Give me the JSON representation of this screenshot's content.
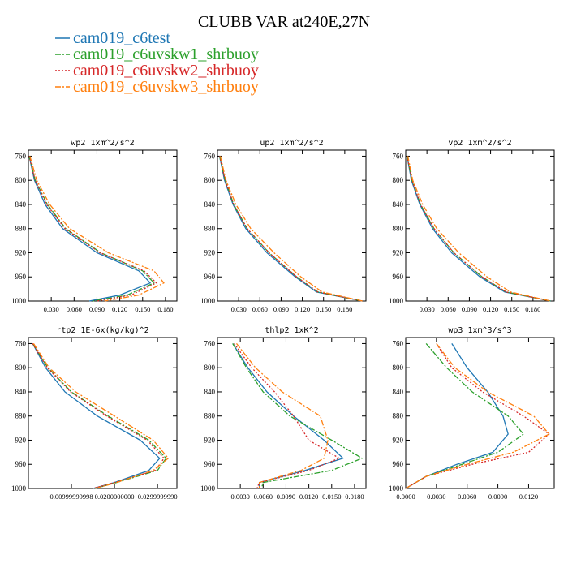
{
  "title": "CLUBB VAR at240E,27N",
  "legend": [
    {
      "label": "cam019_c6test",
      "color": "#1f77b4",
      "dash": "solid"
    },
    {
      "label": "cam019_c6uvskw1_shrbuoy",
      "color": "#2ca02c",
      "dash": "dashdot"
    },
    {
      "label": "cam019_c6uvskw2_shrbuoy",
      "color": "#d62728",
      "dash": "dot"
    },
    {
      "label": "cam019_c6uvskw3_shrbuoy",
      "color": "#ff7f0e",
      "dash": "dashdot"
    }
  ],
  "chart_data": [
    {
      "type": "line",
      "title": "wp2   1xm^2/s^2",
      "xlim": [
        0,
        0.195
      ],
      "ylim": [
        1000,
        750
      ],
      "grid": false,
      "xticks": [
        "0.030",
        "0.060",
        "0.090",
        "0.120",
        "0.150",
        "0.180"
      ],
      "yticks": [
        "760",
        "800",
        "840",
        "880",
        "920",
        "960",
        "1000"
      ],
      "y": [
        760,
        800,
        840,
        880,
        920,
        950,
        970,
        990,
        1000
      ],
      "series": [
        {
          "values": [
            0.001,
            0.008,
            0.022,
            0.045,
            0.09,
            0.145,
            0.16,
            0.12,
            0.08
          ]
        },
        {
          "values": [
            0.001,
            0.009,
            0.025,
            0.049,
            0.095,
            0.15,
            0.165,
            0.13,
            0.085
          ]
        },
        {
          "values": [
            0.001,
            0.009,
            0.024,
            0.048,
            0.094,
            0.152,
            0.168,
            0.135,
            0.09
          ]
        },
        {
          "values": [
            0.002,
            0.011,
            0.028,
            0.054,
            0.105,
            0.165,
            0.178,
            0.145,
            0.1
          ]
        }
      ]
    },
    {
      "type": "line",
      "title": "up2   1xm^2/s^2",
      "xlim": [
        0,
        0.21
      ],
      "ylim": [
        1000,
        750
      ],
      "grid": false,
      "xticks": [
        "0.030",
        "0.060",
        "0.090",
        "0.120",
        "0.150",
        "0.180"
      ],
      "yticks": [
        "760",
        "800",
        "840",
        "880",
        "920",
        "960",
        "1000"
      ],
      "y": [
        760,
        800,
        840,
        880,
        920,
        960,
        985,
        1000
      ],
      "series": [
        {
          "values": [
            0.003,
            0.01,
            0.022,
            0.04,
            0.07,
            0.11,
            0.14,
            0.205
          ]
        },
        {
          "values": [
            0.003,
            0.011,
            0.023,
            0.042,
            0.073,
            0.112,
            0.142,
            0.205
          ]
        },
        {
          "values": [
            0.003,
            0.011,
            0.023,
            0.042,
            0.073,
            0.112,
            0.142,
            0.205
          ]
        },
        {
          "values": [
            0.004,
            0.012,
            0.026,
            0.047,
            0.08,
            0.118,
            0.148,
            0.205
          ]
        }
      ]
    },
    {
      "type": "line",
      "title": "vp2   1xm^2/s^2",
      "xlim": [
        0,
        0.21
      ],
      "ylim": [
        1000,
        750
      ],
      "grid": false,
      "xticks": [
        "0.030",
        "0.060",
        "0.090",
        "0.120",
        "0.150",
        "0.180"
      ],
      "yticks": [
        "760",
        "800",
        "840",
        "880",
        "920",
        "960",
        "1000"
      ],
      "y": [
        760,
        800,
        840,
        880,
        920,
        960,
        985,
        1000
      ],
      "series": [
        {
          "values": [
            0.002,
            0.008,
            0.02,
            0.038,
            0.065,
            0.105,
            0.14,
            0.205
          ]
        },
        {
          "values": [
            0.002,
            0.009,
            0.021,
            0.04,
            0.068,
            0.108,
            0.142,
            0.205
          ]
        },
        {
          "values": [
            0.002,
            0.009,
            0.021,
            0.04,
            0.068,
            0.108,
            0.142,
            0.205
          ]
        },
        {
          "values": [
            0.003,
            0.01,
            0.024,
            0.044,
            0.075,
            0.115,
            0.148,
            0.205
          ]
        }
      ]
    },
    {
      "type": "line",
      "title": "rtp2   1E-6x(kg/kg)^2",
      "xlim": [
        0,
        0.0345
      ],
      "ylim": [
        1000,
        750
      ],
      "grid": false,
      "xticks": [
        "0.00999999998",
        "0.0200000000",
        "0.0299999990"
      ],
      "yticks": [
        "760",
        "800",
        "840",
        "880",
        "920",
        "960",
        "1000"
      ],
      "y": [
        760,
        800,
        840,
        880,
        920,
        950,
        970,
        990,
        1000
      ],
      "series": [
        {
          "values": [
            0.001,
            0.004,
            0.0085,
            0.016,
            0.026,
            0.0305,
            0.028,
            0.02,
            0.015
          ]
        },
        {
          "values": [
            0.001,
            0.0045,
            0.01,
            0.0185,
            0.028,
            0.032,
            0.03,
            0.0205,
            0.0155
          ]
        },
        {
          "values": [
            0.001,
            0.0044,
            0.0098,
            0.0182,
            0.0276,
            0.0315,
            0.0295,
            0.02,
            0.015
          ]
        },
        {
          "values": [
            0.0012,
            0.0048,
            0.011,
            0.02,
            0.029,
            0.0325,
            0.029,
            0.0205,
            0.0155
          ]
        }
      ]
    },
    {
      "type": "line",
      "title": "thlp2   1xK^2",
      "xlim": [
        0,
        0.0195
      ],
      "ylim": [
        1000,
        750
      ],
      "grid": false,
      "xticks": [
        "0.0030",
        "0.0060",
        "0.0090",
        "0.0120",
        "0.0150",
        "0.0180"
      ],
      "yticks": [
        "760",
        "800",
        "840",
        "880",
        "920",
        "960",
        "1000"
      ],
      "y": [
        760,
        800,
        840,
        880,
        920,
        950,
        970,
        990,
        1000
      ],
      "series": [
        {
          "values": [
            0.002,
            0.004,
            0.0065,
            0.01,
            0.014,
            0.0165,
            0.0115,
            0.0055,
            0.0055
          ]
        },
        {
          "values": [
            0.002,
            0.0038,
            0.006,
            0.0095,
            0.015,
            0.019,
            0.015,
            0.006,
            0.0058
          ]
        },
        {
          "values": [
            0.0022,
            0.0045,
            0.0075,
            0.01,
            0.012,
            0.016,
            0.012,
            0.0055,
            0.0052
          ]
        },
        {
          "values": [
            0.0025,
            0.005,
            0.0085,
            0.0135,
            0.0145,
            0.014,
            0.011,
            0.0055,
            0.0055
          ]
        }
      ]
    },
    {
      "type": "line",
      "title": "wp3   1xm^3/s^3",
      "xlim": [
        0,
        0.0145
      ],
      "ylim": [
        1000,
        750
      ],
      "grid": false,
      "xticks": [
        "0.0000",
        "0.0030",
        "0.0060",
        "0.0090",
        "0.0120"
      ],
      "yticks": [
        "760",
        "800",
        "840",
        "880",
        "920",
        "960",
        "1000"
      ],
      "y": [
        760,
        800,
        840,
        880,
        910,
        940,
        960,
        980,
        1000
      ],
      "series": [
        {
          "values": [
            0.0045,
            0.006,
            0.008,
            0.0095,
            0.01,
            0.0085,
            0.005,
            0.002,
            0.0
          ]
        },
        {
          "values": [
            0.002,
            0.004,
            0.0065,
            0.01,
            0.0115,
            0.009,
            0.0055,
            0.002,
            0.0
          ]
        },
        {
          "values": [
            0.003,
            0.0045,
            0.0075,
            0.0115,
            0.014,
            0.012,
            0.0065,
            0.002,
            0.0
          ]
        },
        {
          "values": [
            0.003,
            0.0048,
            0.008,
            0.0125,
            0.014,
            0.0105,
            0.006,
            0.002,
            0.0
          ]
        }
      ]
    }
  ]
}
